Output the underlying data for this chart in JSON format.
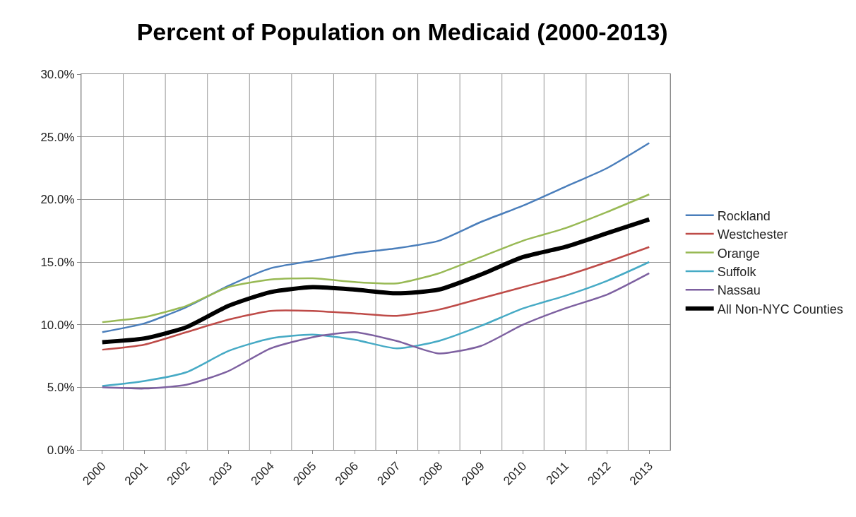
{
  "chart_data": {
    "type": "line",
    "title": "Percent of Population on Medicaid (2000-2013)",
    "categories": [
      "2000",
      "2001",
      "2002",
      "2003",
      "2004",
      "2005",
      "2006",
      "2007",
      "2008",
      "2009",
      "2010",
      "2011",
      "2012",
      "2013"
    ],
    "series": [
      {
        "name": "Rockland",
        "color": "#4a7ebb",
        "values": [
          9.4,
          10.1,
          11.4,
          13.1,
          14.5,
          15.1,
          15.7,
          16.1,
          16.7,
          18.2,
          19.5,
          21.0,
          22.5,
          24.5
        ]
      },
      {
        "name": "Westchester",
        "color": "#be4b48",
        "values": [
          8.0,
          8.4,
          9.4,
          10.4,
          11.1,
          11.1,
          10.9,
          10.7,
          11.2,
          12.1,
          13.0,
          13.9,
          15.0,
          16.2
        ]
      },
      {
        "name": "Orange",
        "color": "#98b954",
        "values": [
          10.2,
          10.6,
          11.5,
          13.0,
          13.6,
          13.7,
          13.4,
          13.3,
          14.1,
          15.4,
          16.7,
          17.7,
          19.0,
          20.4
        ]
      },
      {
        "name": "Suffolk",
        "color": "#46aac5",
        "values": [
          5.1,
          5.5,
          6.2,
          7.9,
          8.9,
          9.2,
          8.8,
          8.1,
          8.7,
          9.9,
          11.3,
          12.3,
          13.5,
          15.0
        ]
      },
      {
        "name": "Nassau",
        "color": "#7d60a0",
        "values": [
          5.0,
          4.9,
          5.2,
          6.3,
          8.1,
          9.0,
          9.4,
          8.7,
          7.7,
          8.3,
          10.0,
          11.3,
          12.4,
          14.1
        ]
      },
      {
        "name": "All Non-NYC Counties",
        "color": "#000000",
        "values": [
          8.6,
          8.9,
          9.8,
          11.5,
          12.6,
          13.0,
          12.8,
          12.5,
          12.8,
          14.0,
          15.4,
          16.2,
          17.3,
          18.4
        ]
      }
    ],
    "ylim": [
      0,
      30
    ],
    "yticks": [
      {
        "value": 0,
        "label": "0.0%"
      },
      {
        "value": 5,
        "label": "5.0%"
      },
      {
        "value": 10,
        "label": "10.0%"
      },
      {
        "value": 15,
        "label": "15.0%"
      },
      {
        "value": 20,
        "label": "20.0%"
      },
      {
        "value": 25,
        "label": "25.0%"
      },
      {
        "value": 30,
        "label": "30.0%"
      }
    ],
    "grid": true,
    "legend": "right",
    "marker": "none",
    "line_style": "solid"
  }
}
